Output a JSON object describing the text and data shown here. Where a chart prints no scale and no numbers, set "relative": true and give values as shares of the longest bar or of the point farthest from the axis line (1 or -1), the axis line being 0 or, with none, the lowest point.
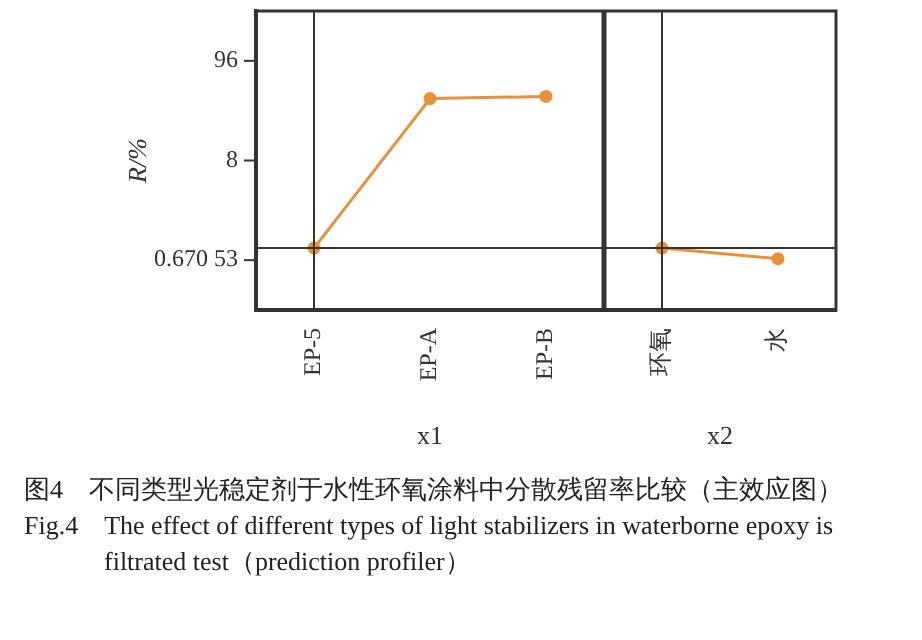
{
  "chart_data": {
    "type": "line",
    "xlabel": "x1",
    "ylabel": "R/%",
    "categories": [
      "EP-5",
      "EP-A",
      "EP-B",
      "环氧",
      "水"
    ],
    "relative": true,
    "series": [
      {
        "color": "#e8903a",
        "values": [
          0.29,
          0.99,
          1,
          null,
          null
        ]
      },
      {
        "color": "#e8903a",
        "values": [
          null,
          null,
          null,
          0.29,
          0.24
        ]
      }
    ],
    "ref_lines": [
      {
        "axis": "y",
        "value": 0.29
      },
      {
        "axis": "x",
        "value": "EP-5"
      },
      {
        "axis": "x",
        "value": "环氧"
      }
    ],
    "marker": "circle",
    "annotations": [
      "96",
      "8",
      "0.670 53",
      "x2",
      "图4　不同类型光稳定剂于水性环氧涂料中分散残留率比较（主效应图）",
      "Fig.4　The effect of different types of light stabilizers in waterborne epoxy is filtrated test（prediction profiler）"
    ]
  }
}
